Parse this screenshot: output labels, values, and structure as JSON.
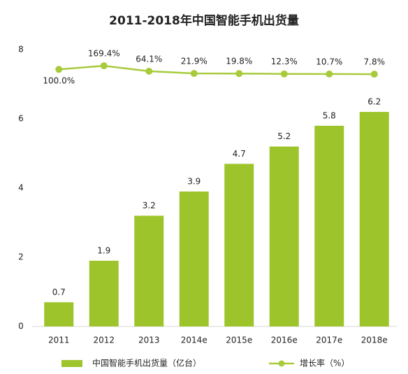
{
  "chart_data": {
    "type": "bar",
    "title": "2011-2018年中国智能手机出货量",
    "categories": [
      "2011",
      "2012",
      "2013",
      "2014e",
      "2015e",
      "2016e",
      "2017e",
      "2018e"
    ],
    "series": [
      {
        "name": "中国智能手机出货量（亿台）",
        "type": "bar",
        "color": "#9dc52b",
        "values": [
          0.7,
          1.9,
          3.2,
          3.9,
          4.7,
          5.2,
          5.8,
          6.2
        ]
      },
      {
        "name": "增长率（%）",
        "type": "line",
        "axis": "y2",
        "color": "#a8cb3c",
        "values": [
          100.0,
          169.4,
          64.1,
          21.9,
          19.8,
          12.3,
          10.7,
          7.8
        ],
        "value_labels": [
          "100.0%",
          "169.4%",
          "64.1%",
          "21.9%",
          "19.8%",
          "12.3%",
          "10.7%",
          "7.8%"
        ]
      }
    ],
    "ylim": [
      0,
      8
    ],
    "yticks": [
      0,
      2,
      4,
      6,
      8
    ],
    "y2lim": [
      -4850,
      480
    ],
    "legend": "bottom"
  }
}
